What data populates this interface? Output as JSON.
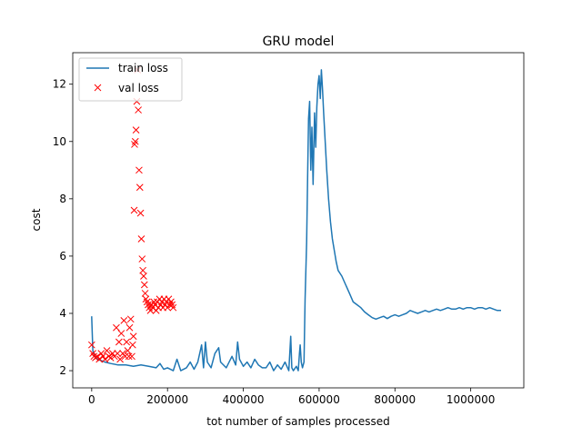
{
  "chart_data": {
    "type": "line",
    "title": "GRU model",
    "xlabel": "tot number of samples processed",
    "ylabel": "cost",
    "xlim": [
      -50000,
      1140000
    ],
    "ylim": [
      1.4,
      13.1
    ],
    "xticks": [
      0,
      200000,
      400000,
      600000,
      800000,
      1000000
    ],
    "xtick_labels": [
      "0",
      "200000",
      "400000",
      "600000",
      "800000",
      "1000000"
    ],
    "yticks": [
      2,
      4,
      6,
      8,
      10,
      12
    ],
    "ytick_labels": [
      "2",
      "4",
      "6",
      "8",
      "10",
      "12"
    ],
    "grid": false,
    "legend_position": "top-left",
    "series": [
      {
        "name": "train loss",
        "style": "line",
        "color": "#1f77b4",
        "points": [
          [
            0,
            3.9
          ],
          [
            3000,
            2.7
          ],
          [
            8000,
            2.5
          ],
          [
            15000,
            2.4
          ],
          [
            25000,
            2.35
          ],
          [
            35000,
            2.3
          ],
          [
            50000,
            2.25
          ],
          [
            70000,
            2.2
          ],
          [
            90000,
            2.2
          ],
          [
            110000,
            2.15
          ],
          [
            130000,
            2.2
          ],
          [
            150000,
            2.15
          ],
          [
            170000,
            2.1
          ],
          [
            180000,
            2.25
          ],
          [
            190000,
            2.05
          ],
          [
            200000,
            2.1
          ],
          [
            215000,
            2.0
          ],
          [
            225000,
            2.4
          ],
          [
            235000,
            2.0
          ],
          [
            250000,
            2.1
          ],
          [
            260000,
            2.3
          ],
          [
            270000,
            2.05
          ],
          [
            280000,
            2.3
          ],
          [
            290000,
            2.9
          ],
          [
            295000,
            2.1
          ],
          [
            300000,
            3.0
          ],
          [
            305000,
            2.3
          ],
          [
            315000,
            2.1
          ],
          [
            325000,
            2.6
          ],
          [
            335000,
            2.8
          ],
          [
            340000,
            2.3
          ],
          [
            355000,
            2.1
          ],
          [
            370000,
            2.5
          ],
          [
            380000,
            2.2
          ],
          [
            385000,
            3.0
          ],
          [
            390000,
            2.4
          ],
          [
            400000,
            2.15
          ],
          [
            410000,
            2.3
          ],
          [
            420000,
            2.1
          ],
          [
            430000,
            2.4
          ],
          [
            440000,
            2.2
          ],
          [
            450000,
            2.1
          ],
          [
            460000,
            2.1
          ],
          [
            470000,
            2.3
          ],
          [
            480000,
            2.0
          ],
          [
            490000,
            2.2
          ],
          [
            500000,
            2.05
          ],
          [
            510000,
            2.3
          ],
          [
            520000,
            2.0
          ],
          [
            525000,
            3.2
          ],
          [
            528000,
            2.1
          ],
          [
            532000,
            2.0
          ],
          [
            540000,
            2.15
          ],
          [
            545000,
            2.0
          ],
          [
            548000,
            2.6
          ],
          [
            550000,
            2.9
          ],
          [
            553000,
            2.3
          ],
          [
            556000,
            2.1
          ],
          [
            560000,
            2.3
          ],
          [
            563000,
            4.5
          ],
          [
            567000,
            6.5
          ],
          [
            570000,
            9.0
          ],
          [
            572000,
            10.8
          ],
          [
            575000,
            11.4
          ],
          [
            578000,
            9.0
          ],
          [
            581000,
            10.5
          ],
          [
            584000,
            8.5
          ],
          [
            588000,
            11.0
          ],
          [
            591000,
            9.8
          ],
          [
            594000,
            11.2
          ],
          [
            597000,
            12.0
          ],
          [
            600000,
            12.3
          ],
          [
            603000,
            11.5
          ],
          [
            606000,
            12.5
          ],
          [
            609000,
            11.8
          ],
          [
            612000,
            11.0
          ],
          [
            616000,
            10.0
          ],
          [
            620000,
            9.0
          ],
          [
            625000,
            8.0
          ],
          [
            630000,
            7.2
          ],
          [
            635000,
            6.6
          ],
          [
            640000,
            6.2
          ],
          [
            645000,
            5.8
          ],
          [
            650000,
            5.5
          ],
          [
            660000,
            5.3
          ],
          [
            670000,
            5.0
          ],
          [
            680000,
            4.7
          ],
          [
            690000,
            4.4
          ],
          [
            700000,
            4.3
          ],
          [
            710000,
            4.2
          ],
          [
            720000,
            4.05
          ],
          [
            730000,
            3.95
          ],
          [
            740000,
            3.85
          ],
          [
            750000,
            3.8
          ],
          [
            760000,
            3.85
          ],
          [
            770000,
            3.9
          ],
          [
            780000,
            3.82
          ],
          [
            790000,
            3.9
          ],
          [
            800000,
            3.95
          ],
          [
            810000,
            3.9
          ],
          [
            820000,
            3.95
          ],
          [
            830000,
            4.0
          ],
          [
            840000,
            4.1
          ],
          [
            850000,
            4.05
          ],
          [
            860000,
            4.0
          ],
          [
            870000,
            4.05
          ],
          [
            880000,
            4.1
          ],
          [
            890000,
            4.05
          ],
          [
            900000,
            4.1
          ],
          [
            910000,
            4.15
          ],
          [
            920000,
            4.1
          ],
          [
            930000,
            4.15
          ],
          [
            940000,
            4.2
          ],
          [
            950000,
            4.15
          ],
          [
            960000,
            4.15
          ],
          [
            970000,
            4.2
          ],
          [
            980000,
            4.15
          ],
          [
            990000,
            4.2
          ],
          [
            1000000,
            4.2
          ],
          [
            1010000,
            4.15
          ],
          [
            1020000,
            4.2
          ],
          [
            1030000,
            4.2
          ],
          [
            1040000,
            4.15
          ],
          [
            1050000,
            4.2
          ],
          [
            1060000,
            4.15
          ],
          [
            1070000,
            4.1
          ],
          [
            1080000,
            4.1
          ]
        ]
      },
      {
        "name": "val loss",
        "style": "markers",
        "marker": "x",
        "color": "#ff0000",
        "points": [
          [
            0,
            2.9
          ],
          [
            3000,
            2.6
          ],
          [
            6000,
            2.5
          ],
          [
            10000,
            2.45
          ],
          [
            15000,
            2.5
          ],
          [
            20000,
            2.4
          ],
          [
            25000,
            2.6
          ],
          [
            30000,
            2.5
          ],
          [
            35000,
            2.4
          ],
          [
            40000,
            2.7
          ],
          [
            45000,
            2.5
          ],
          [
            50000,
            2.45
          ],
          [
            55000,
            2.6
          ],
          [
            60000,
            2.5
          ],
          [
            65000,
            3.5
          ],
          [
            68000,
            2.6
          ],
          [
            72000,
            3.0
          ],
          [
            75000,
            2.4
          ],
          [
            78000,
            3.3
          ],
          [
            82000,
            2.6
          ],
          [
            85000,
            3.75
          ],
          [
            88000,
            2.5
          ],
          [
            92000,
            3.0
          ],
          [
            95000,
            2.7
          ],
          [
            98000,
            2.5
          ],
          [
            100000,
            3.5
          ],
          [
            103000,
            3.8
          ],
          [
            106000,
            2.5
          ],
          [
            108000,
            2.9
          ],
          [
            110000,
            3.2
          ],
          [
            112000,
            7.6
          ],
          [
            113000,
            9.9
          ],
          [
            115000,
            10.0
          ],
          [
            117000,
            10.4
          ],
          [
            119000,
            11.4
          ],
          [
            121000,
            12.5
          ],
          [
            123000,
            11.1
          ],
          [
            125000,
            9.0
          ],
          [
            127000,
            8.4
          ],
          [
            129000,
            7.5
          ],
          [
            131000,
            6.6
          ],
          [
            133000,
            5.9
          ],
          [
            135000,
            5.5
          ],
          [
            137000,
            5.3
          ],
          [
            139000,
            5.0
          ],
          [
            141000,
            4.7
          ],
          [
            143000,
            4.5
          ],
          [
            146000,
            4.4
          ],
          [
            149000,
            4.3
          ],
          [
            152000,
            4.2
          ],
          [
            155000,
            4.1
          ],
          [
            158000,
            4.3
          ],
          [
            161000,
            4.2
          ],
          [
            164000,
            4.4
          ],
          [
            167000,
            4.3
          ],
          [
            170000,
            4.1
          ],
          [
            173000,
            4.4
          ],
          [
            176000,
            4.2
          ],
          [
            179000,
            4.5
          ],
          [
            182000,
            4.3
          ],
          [
            185000,
            4.4
          ],
          [
            188000,
            4.2
          ],
          [
            191000,
            4.5
          ],
          [
            194000,
            4.3
          ],
          [
            197000,
            4.4
          ],
          [
            200000,
            4.2
          ],
          [
            203000,
            4.5
          ],
          [
            206000,
            4.3
          ],
          [
            209000,
            4.4
          ],
          [
            212000,
            4.3
          ],
          [
            215000,
            4.2
          ]
        ]
      }
    ]
  }
}
